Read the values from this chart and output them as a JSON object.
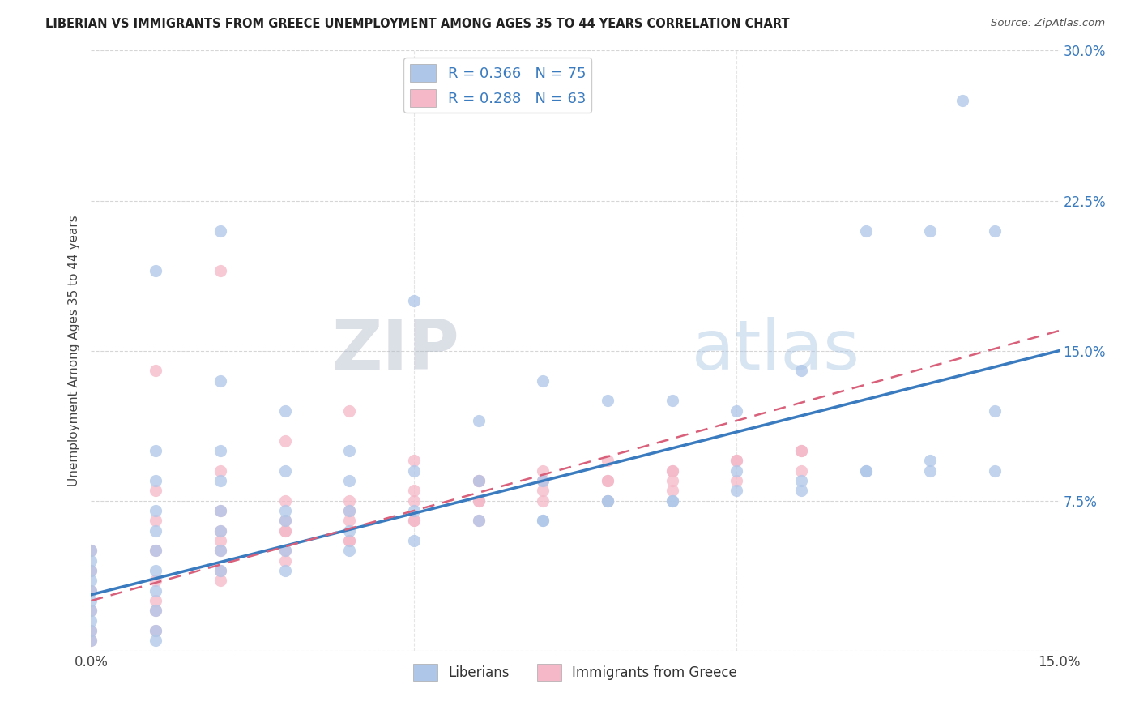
{
  "title": "LIBERIAN VS IMMIGRANTS FROM GREECE UNEMPLOYMENT AMONG AGES 35 TO 44 YEARS CORRELATION CHART",
  "source": "Source: ZipAtlas.com",
  "ylabel": "Unemployment Among Ages 35 to 44 years",
  "xlim": [
    0.0,
    0.15
  ],
  "ylim": [
    0.0,
    0.3
  ],
  "xtick_positions": [
    0.0,
    0.05,
    0.1,
    0.15
  ],
  "ytick_positions": [
    0.0,
    0.075,
    0.15,
    0.225,
    0.3
  ],
  "xticklabels": [
    "0.0%",
    "",
    "",
    "15.0%"
  ],
  "yticklabels": [
    "",
    "7.5%",
    "15.0%",
    "22.5%",
    "30.0%"
  ],
  "legend_labels": [
    "Liberians",
    "Immigrants from Greece"
  ],
  "R_liberian": 0.366,
  "N_liberian": 75,
  "R_greece": 0.288,
  "N_greece": 63,
  "color_liberian": "#aec6e8",
  "color_greece": "#f4b8c8",
  "line_color_liberian": "#3a7bbf",
  "line_color_greece": "#d9607a",
  "line_color_right_axis": "#3a7bbf",
  "watermark_zip": "ZIP",
  "watermark_atlas": "atlas",
  "background_color": "#ffffff",
  "grid_color": "#cccccc",
  "title_color": "#222222",
  "source_color": "#555555",
  "ylabel_color": "#444444",
  "scatter_size": 120,
  "scatter_alpha": 0.75,
  "liberian_x": [
    0.0,
    0.0,
    0.0,
    0.0,
    0.0,
    0.0,
    0.0,
    0.0,
    0.0,
    0.0,
    0.01,
    0.01,
    0.01,
    0.01,
    0.01,
    0.01,
    0.01,
    0.01,
    0.01,
    0.01,
    0.01,
    0.02,
    0.02,
    0.02,
    0.02,
    0.02,
    0.02,
    0.02,
    0.02,
    0.03,
    0.03,
    0.03,
    0.03,
    0.03,
    0.03,
    0.04,
    0.04,
    0.04,
    0.04,
    0.04,
    0.05,
    0.05,
    0.05,
    0.05,
    0.06,
    0.06,
    0.06,
    0.07,
    0.07,
    0.07,
    0.08,
    0.08,
    0.09,
    0.09,
    0.1,
    0.1,
    0.11,
    0.11,
    0.12,
    0.12,
    0.13,
    0.13,
    0.135,
    0.07,
    0.08,
    0.09,
    0.1,
    0.11,
    0.12,
    0.13,
    0.14,
    0.14,
    0.14
  ],
  "liberian_y": [
    0.005,
    0.01,
    0.015,
    0.02,
    0.025,
    0.03,
    0.035,
    0.04,
    0.045,
    0.05,
    0.005,
    0.01,
    0.02,
    0.03,
    0.04,
    0.05,
    0.06,
    0.07,
    0.085,
    0.1,
    0.19,
    0.04,
    0.05,
    0.06,
    0.07,
    0.085,
    0.1,
    0.135,
    0.21,
    0.04,
    0.05,
    0.065,
    0.07,
    0.09,
    0.12,
    0.05,
    0.06,
    0.07,
    0.085,
    0.1,
    0.055,
    0.07,
    0.09,
    0.175,
    0.065,
    0.085,
    0.115,
    0.065,
    0.085,
    0.135,
    0.075,
    0.125,
    0.075,
    0.125,
    0.08,
    0.09,
    0.085,
    0.14,
    0.09,
    0.21,
    0.09,
    0.21,
    0.275,
    0.065,
    0.075,
    0.075,
    0.12,
    0.08,
    0.09,
    0.095,
    0.09,
    0.12,
    0.21
  ],
  "greece_x": [
    0.0,
    0.0,
    0.0,
    0.0,
    0.0,
    0.0,
    0.01,
    0.01,
    0.01,
    0.01,
    0.01,
    0.01,
    0.01,
    0.02,
    0.02,
    0.02,
    0.02,
    0.02,
    0.02,
    0.03,
    0.03,
    0.03,
    0.03,
    0.03,
    0.04,
    0.04,
    0.04,
    0.04,
    0.05,
    0.05,
    0.05,
    0.06,
    0.06,
    0.06,
    0.07,
    0.07,
    0.08,
    0.08,
    0.09,
    0.09,
    0.1,
    0.1,
    0.11,
    0.11,
    0.02,
    0.03,
    0.04,
    0.05,
    0.06,
    0.07,
    0.08,
    0.09,
    0.1,
    0.11,
    0.01,
    0.02,
    0.03,
    0.04,
    0.05,
    0.06,
    0.07,
    0.08,
    0.09
  ],
  "greece_y": [
    0.005,
    0.01,
    0.02,
    0.03,
    0.04,
    0.05,
    0.01,
    0.02,
    0.035,
    0.05,
    0.065,
    0.08,
    0.14,
    0.04,
    0.05,
    0.06,
    0.07,
    0.09,
    0.19,
    0.05,
    0.06,
    0.065,
    0.075,
    0.105,
    0.055,
    0.065,
    0.075,
    0.12,
    0.065,
    0.075,
    0.095,
    0.065,
    0.075,
    0.085,
    0.075,
    0.085,
    0.075,
    0.085,
    0.08,
    0.09,
    0.085,
    0.095,
    0.09,
    0.1,
    0.035,
    0.045,
    0.055,
    0.065,
    0.075,
    0.08,
    0.085,
    0.09,
    0.095,
    0.1,
    0.025,
    0.055,
    0.06,
    0.07,
    0.08,
    0.085,
    0.09,
    0.095,
    0.085
  ]
}
